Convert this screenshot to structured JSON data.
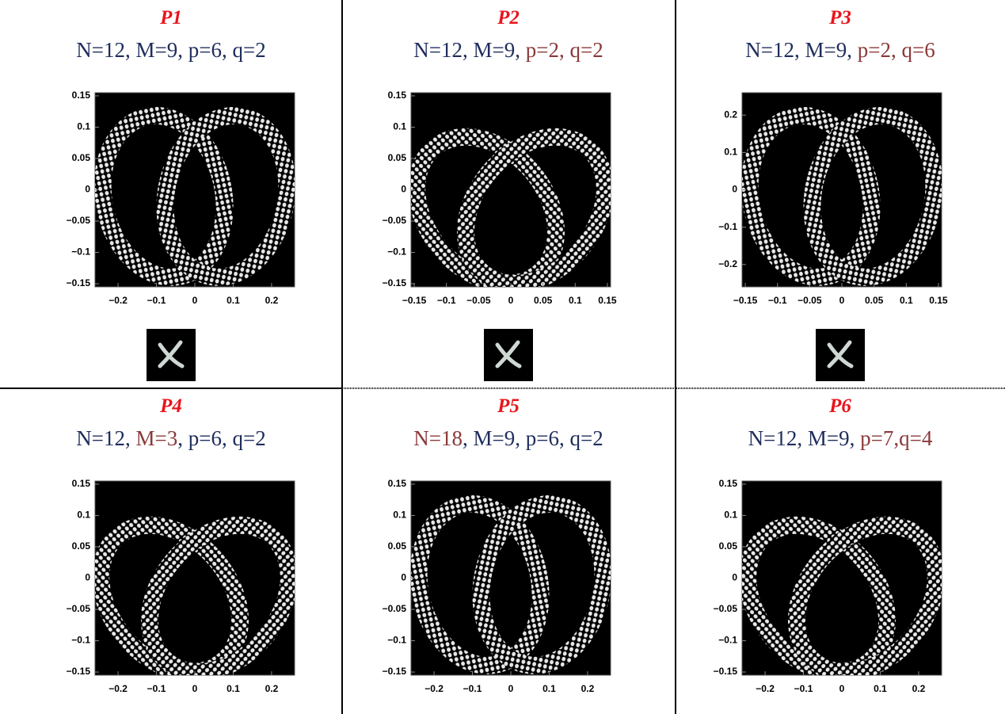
{
  "panels": [
    {
      "label": "P1",
      "params": [
        {
          "text": "N=12, M=9, p=6, q=2",
          "color": "#1f2d5c"
        }
      ],
      "xlim": [
        -0.26,
        0.26
      ],
      "xticks": [
        {
          "value": -0.2,
          "label": "−0.2"
        },
        {
          "value": -0.1,
          "label": "−0.1"
        },
        0,
        0.1,
        0.2
      ],
      "ylim": [
        -0.155,
        0.155
      ],
      "yticks": [
        {
          "value": -0.15,
          "label": "−0.15"
        },
        {
          "value": -0.1,
          "label": "−0.1"
        },
        {
          "value": -0.05,
          "label": "−0.05"
        },
        0,
        0.05,
        0.1,
        0.15
      ]
    },
    {
      "label": "P2",
      "params": [
        {
          "text": "N=12, M=9, ",
          "color": "#1f2d5c"
        },
        {
          "text": "p=2, q=2",
          "color": "#8b3a3a"
        }
      ],
      "xlim": [
        -0.155,
        0.155
      ],
      "xticks": [
        {
          "value": -0.15,
          "label": "−0.15"
        },
        {
          "value": -0.1,
          "label": "−0.1"
        },
        {
          "value": -0.05,
          "label": "−0.05"
        },
        0,
        0.05,
        0.1,
        0.15
      ],
      "ylim": [
        -0.155,
        0.155
      ],
      "yticks": [
        {
          "value": -0.15,
          "label": "−0.15"
        },
        {
          "value": -0.1,
          "label": "−0.1"
        },
        {
          "value": -0.05,
          "label": "−0.05"
        },
        0,
        0.05,
        0.1,
        0.15
      ]
    },
    {
      "label": "P3",
      "params": [
        {
          "text": "N=12, M=9, ",
          "color": "#1f2d5c"
        },
        {
          "text": "p=2, q=6",
          "color": "#8b3a3a"
        }
      ],
      "xlim": [
        -0.155,
        0.155
      ],
      "xticks": [
        {
          "value": -0.15,
          "label": "−0.15"
        },
        {
          "value": -0.1,
          "label": "−0.1"
        },
        {
          "value": -0.05,
          "label": "−0.05"
        },
        0,
        0.05,
        0.1,
        0.15
      ],
      "ylim": [
        -0.26,
        0.26
      ],
      "yticks": [
        {
          "value": -0.2,
          "label": "−0.2"
        },
        {
          "value": -0.1,
          "label": "−0.1"
        },
        0,
        0.1,
        0.2
      ]
    },
    {
      "label": "P4",
      "params": [
        {
          "text": "N=12, ",
          "color": "#1f2d5c"
        },
        {
          "text": "M=3",
          "color": "#8b3a3a"
        },
        {
          "text": ", p=6, q=2",
          "color": "#1f2d5c"
        }
      ],
      "xlim": [
        -0.26,
        0.26
      ],
      "xticks": [
        {
          "value": -0.2,
          "label": "−0.2"
        },
        {
          "value": -0.1,
          "label": "−0.1"
        },
        0,
        0.1,
        0.2
      ],
      "ylim": [
        -0.155,
        0.155
      ],
      "yticks": [
        {
          "value": -0.15,
          "label": "−0.15"
        },
        {
          "value": -0.1,
          "label": "−0.1"
        },
        {
          "value": -0.05,
          "label": "−0.05"
        },
        0,
        0.05,
        0.1,
        0.15
      ]
    },
    {
      "label": "P5",
      "params": [
        {
          "text": "N=18",
          "color": "#8b3a3a"
        },
        {
          "text": ", M=9, p=6, q=2",
          "color": "#1f2d5c"
        }
      ],
      "xlim": [
        -0.26,
        0.26
      ],
      "xticks": [
        {
          "value": -0.2,
          "label": "−0.2"
        },
        {
          "value": -0.1,
          "label": "−0.1"
        },
        0,
        0.1,
        0.2
      ],
      "ylim": [
        -0.155,
        0.155
      ],
      "yticks": [
        {
          "value": -0.15,
          "label": "−0.15"
        },
        {
          "value": -0.1,
          "label": "−0.1"
        },
        {
          "value": -0.05,
          "label": "−0.05"
        },
        0,
        0.05,
        0.1,
        0.15
      ]
    },
    {
      "label": "P6",
      "params": [
        {
          "text": "N=12, M=9,",
          "color": "#1f2d5c"
        },
        {
          "text": " p=7,q=4",
          "color": "#8b3a3a"
        }
      ],
      "xlim": [
        -0.26,
        0.26
      ],
      "xticks": [
        {
          "value": -0.2,
          "label": "−0.2"
        },
        {
          "value": -0.1,
          "label": "−0.1"
        },
        0,
        0.1,
        0.2
      ],
      "ylim": [
        -0.155,
        0.155
      ],
      "yticks": [
        {
          "value": -0.15,
          "label": "−0.15"
        },
        {
          "value": -0.1,
          "label": "−0.1"
        },
        {
          "value": -0.05,
          "label": "−0.05"
        },
        0,
        0.05,
        0.1,
        0.15
      ]
    }
  ]
}
